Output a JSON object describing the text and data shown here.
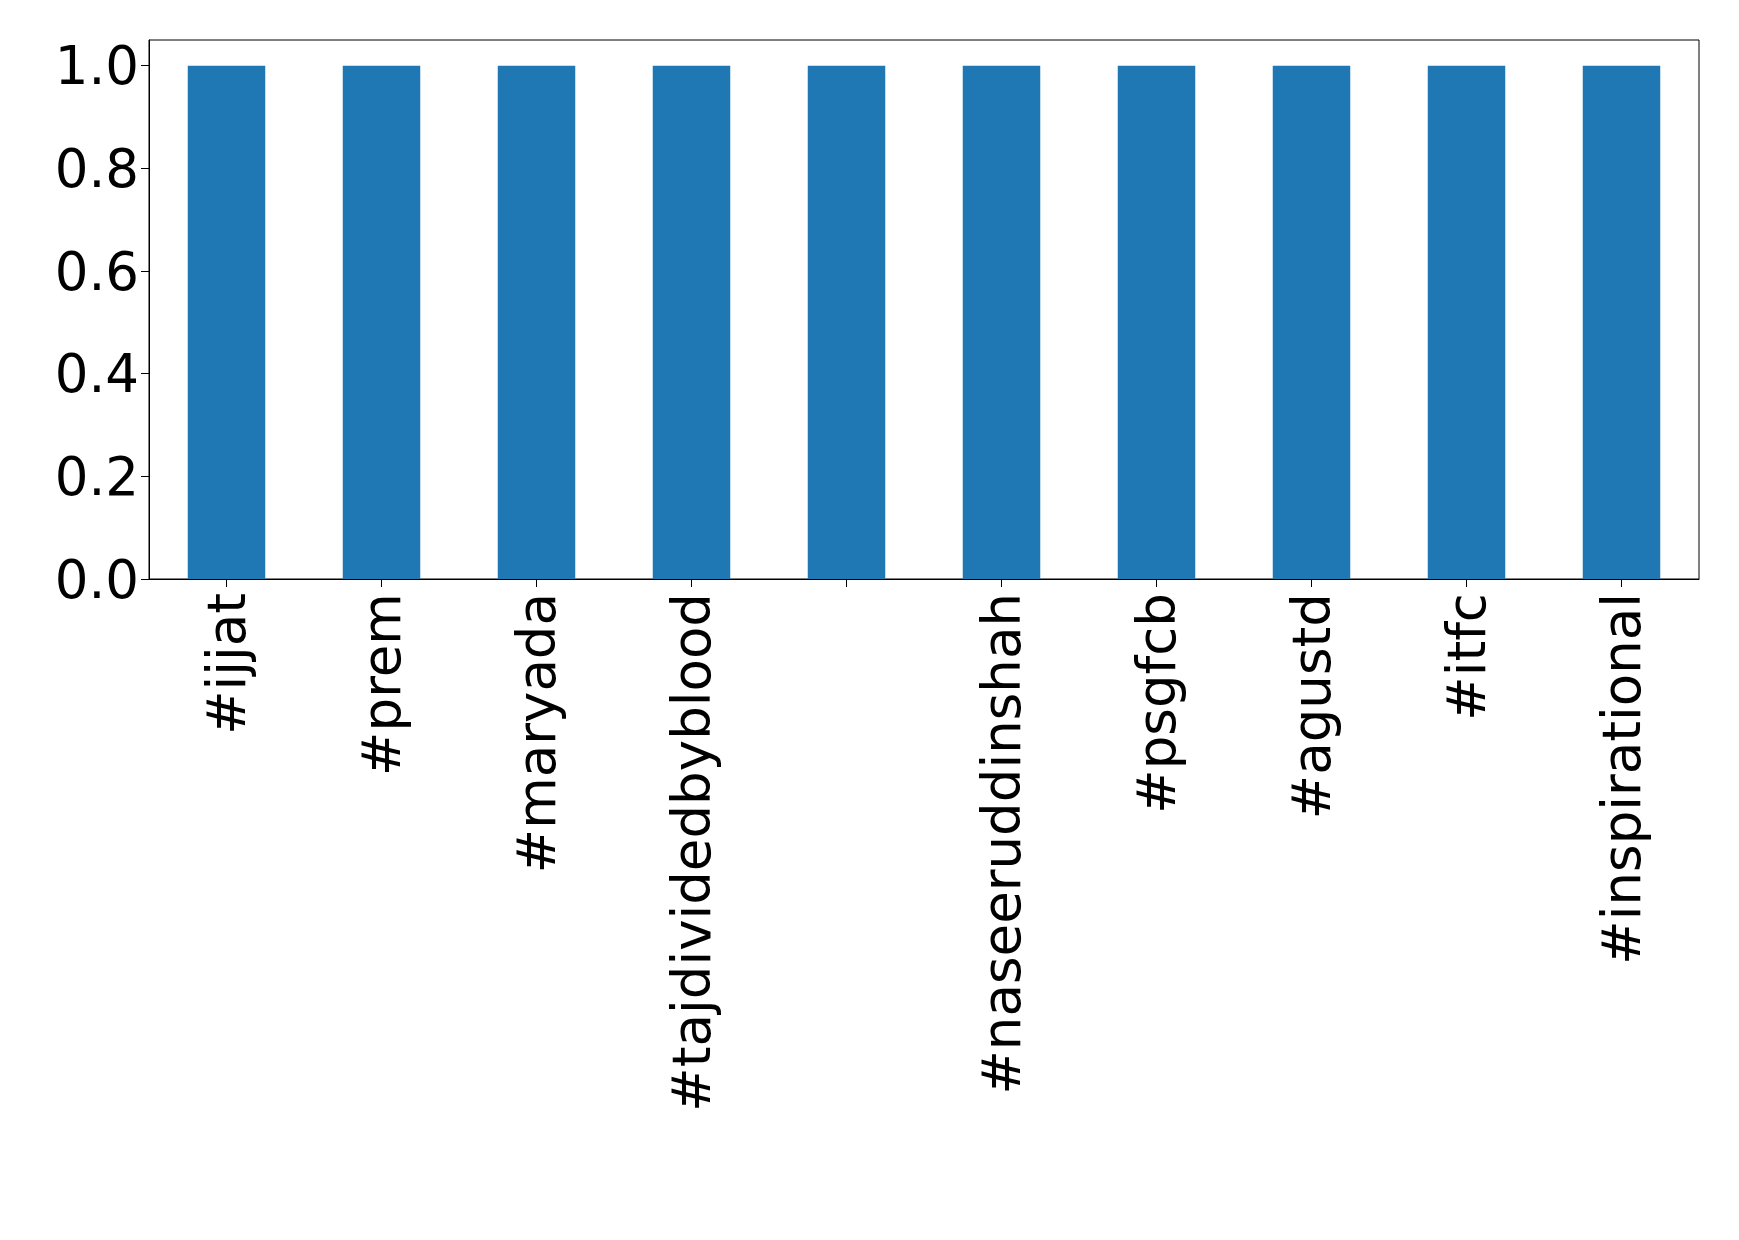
{
  "chart_data": {
    "type": "bar",
    "categories": [
      "#ijjat",
      "#prem",
      "#maryada",
      "#tajdividedbyblood",
      null,
      "#naseeruddinshah",
      "#psgfcb",
      "#agustd",
      "#itfc",
      "#inspirational"
    ],
    "values": [
      1,
      1,
      1,
      1,
      1,
      1,
      1,
      1,
      1,
      1
    ],
    "color": "#1f77b4",
    "ylim": [
      0,
      1.05
    ],
    "yticks": [
      {
        "value": 0,
        "label": "0.0"
      },
      {
        "value": 0.2,
        "label": "0.2"
      },
      {
        "value": 0.4,
        "label": "0.4"
      },
      {
        "value": 0.6,
        "label": "0.6"
      },
      {
        "value": 0.8,
        "label": "0.8"
      },
      {
        "value": 1,
        "label": "1.0"
      }
    ],
    "grid": false
  }
}
